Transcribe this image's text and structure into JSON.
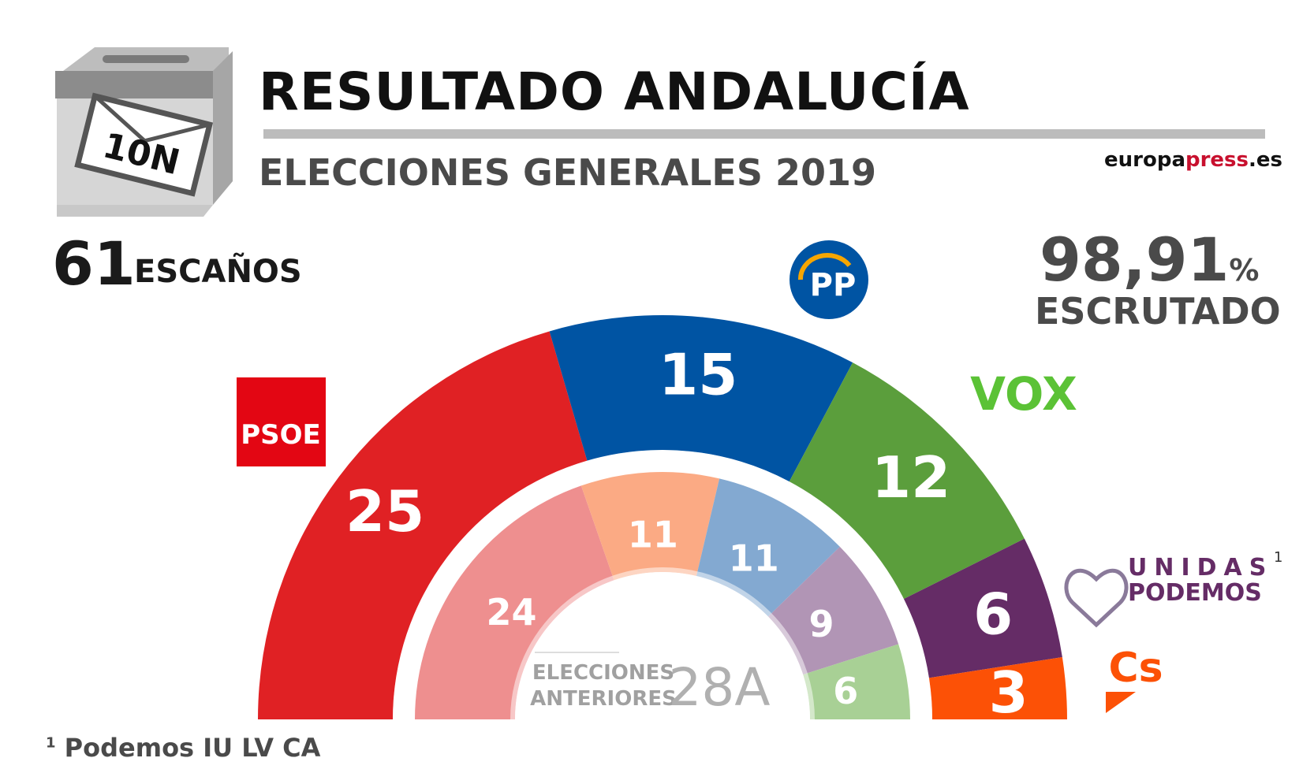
{
  "header": {
    "title": "RESULTADO ANDALUCÍA",
    "subtitle": "ELECCIONES GENERALES 2019",
    "brand_a": "europa",
    "brand_b": "press",
    "brand_c": ".es",
    "ballot_label": "10N"
  },
  "summary": {
    "seats": "61",
    "seats_label": "ESCAÑOS",
    "scrutiny": "98,91",
    "scrutiny_unit": "%",
    "scrutiny_label": "ESCRUTADO"
  },
  "footnote": {
    "mark": "1",
    "text": "Podemos IU LV CA"
  },
  "logos": {
    "psoe": "PSOE",
    "pp": "PP",
    "vox": "VOX",
    "up_line1": "UNIDAS",
    "up_line2": "PODEMOS",
    "up_mark": "1",
    "cs": "Cs"
  },
  "chart_data": {
    "type": "pie",
    "subtype": "parliament-semicircle",
    "title": "RESULTADO ANDALUCÍA",
    "total_seats": 61,
    "series": [
      {
        "name": "10N",
        "categories": [
          "PSOE",
          "PP",
          "VOX",
          "UNIDAS PODEMOS",
          "Cs"
        ],
        "values": [
          25,
          15,
          12,
          6,
          3
        ],
        "colors": [
          "#e02124",
          "#0054a3",
          "#5b9e3c",
          "#652c66",
          "#fc5106"
        ]
      },
      {
        "name": "28A",
        "label_line1": "ELECCIONES",
        "label_line2": "ANTERIORES",
        "label_tag": "28A",
        "categories": [
          "PSOE",
          "Cs",
          "PP",
          "UNIDAS PODEMOS",
          "VOX"
        ],
        "values": [
          24,
          11,
          11,
          9,
          6
        ],
        "colors": [
          "#ee8f8f",
          "#fbaa84",
          "#83a9d1",
          "#b195b5",
          "#a8d095"
        ]
      }
    ]
  }
}
